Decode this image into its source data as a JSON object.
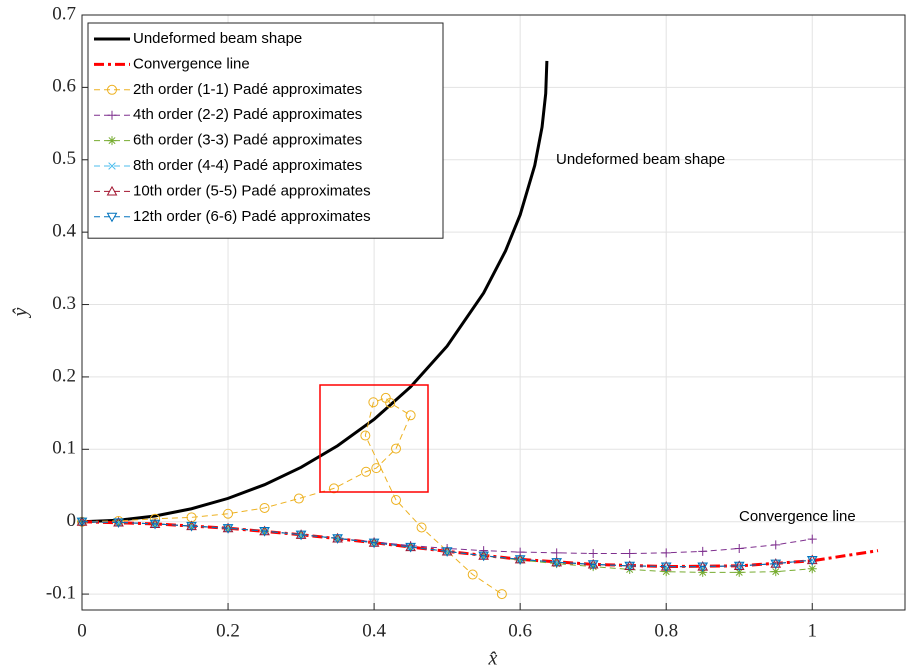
{
  "chart_data": {
    "type": "line",
    "xlabel": "x̂",
    "ylabel": "ŷ",
    "xlim": [
      0,
      1.127
    ],
    "ylim": [
      -0.122,
      0.7
    ],
    "xticks": [
      0,
      0.2,
      0.4,
      0.6,
      0.8,
      1
    ],
    "yticks": [
      -0.1,
      0,
      0.1,
      0.2,
      0.3,
      0.4,
      0.5,
      0.6,
      0.7
    ],
    "grid": true,
    "legend": "upper left",
    "annotations": [
      "Undeformed beam shape",
      "Convergence line"
    ],
    "series": [
      {
        "name": "Undeformed beam shape",
        "color": "#000000",
        "style": "solid",
        "marker": "none",
        "x": [
          0,
          0.05,
          0.1,
          0.15,
          0.2,
          0.25,
          0.3,
          0.35,
          0.4,
          0.45,
          0.5,
          0.55,
          0.58,
          0.6,
          0.62,
          0.63,
          0.635,
          0.6366
        ],
        "values": [
          0,
          0.002,
          0.0079,
          0.0179,
          0.0322,
          0.0511,
          0.0751,
          0.1049,
          0.1414,
          0.1863,
          0.2426,
          0.316,
          0.3742,
          0.4239,
          0.4922,
          0.5452,
          0.5915,
          0.6366
        ]
      },
      {
        "name": "Convergence line",
        "color": "#ff0000",
        "style": "dashdot",
        "marker": "none",
        "x": [
          0,
          0.1,
          0.2,
          0.3,
          0.4,
          0.5,
          0.6,
          0.7,
          0.8,
          0.9,
          1.0,
          1.09
        ],
        "values": [
          0,
          -0.003,
          -0.009,
          -0.018,
          -0.029,
          -0.041,
          -0.052,
          -0.059,
          -0.062,
          -0.061,
          -0.054,
          -0.04
        ]
      },
      {
        "name": "2th order (1-1) Padé approximates",
        "color": "#edb120",
        "style": "dashed",
        "marker": "circle",
        "x": [
          0,
          0.05,
          0.1,
          0.15,
          0.2,
          0.25,
          0.297,
          0.345,
          0.389,
          0.403,
          0.43,
          0.45,
          0.422,
          0.416,
          0.399,
          0.388,
          0.43,
          0.465,
          0.535,
          0.575
        ],
        "values": [
          0,
          0.001,
          0.004,
          0.006,
          0.011,
          0.019,
          0.032,
          0.046,
          0.069,
          0.074,
          0.101,
          0.147,
          0.164,
          0.171,
          0.165,
          0.119,
          0.03,
          -0.008,
          -0.073,
          -0.1
        ]
      },
      {
        "name": "4th order (2-2) Padé approximates",
        "color": "#7e2f8e",
        "style": "dashed",
        "marker": "plus",
        "x": [
          0,
          0.05,
          0.1,
          0.15,
          0.2,
          0.25,
          0.3,
          0.35,
          0.4,
          0.45,
          0.5,
          0.55,
          0.6,
          0.65,
          0.7,
          0.75,
          0.8,
          0.85,
          0.9,
          0.95,
          1
        ],
        "values": [
          0,
          -0.001,
          -0.003,
          -0.006,
          -0.009,
          -0.013,
          -0.018,
          -0.023,
          -0.028,
          -0.033,
          -0.037,
          -0.04,
          -0.042,
          -0.043,
          -0.044,
          -0.044,
          -0.043,
          -0.041,
          -0.037,
          -0.032,
          -0.024
        ]
      },
      {
        "name": "6th order (3-3) Padé approximates",
        "color": "#77ac30",
        "style": "dashed",
        "marker": "asterisk",
        "x": [
          0,
          0.05,
          0.1,
          0.15,
          0.2,
          0.25,
          0.3,
          0.35,
          0.4,
          0.45,
          0.5,
          0.55,
          0.6,
          0.65,
          0.7,
          0.75,
          0.8,
          0.85,
          0.9,
          0.95,
          1
        ],
        "values": [
          0,
          -0.001,
          -0.003,
          -0.006,
          -0.009,
          -0.013,
          -0.018,
          -0.023,
          -0.029,
          -0.035,
          -0.041,
          -0.047,
          -0.053,
          -0.058,
          -0.062,
          -0.066,
          -0.069,
          -0.07,
          -0.07,
          -0.069,
          -0.065
        ]
      },
      {
        "name": "8th order (4-4) Padé approximates",
        "color": "#4dbeee",
        "style": "dashed",
        "marker": "cross",
        "x": [
          0,
          0.05,
          0.1,
          0.15,
          0.2,
          0.25,
          0.3,
          0.35,
          0.4,
          0.45,
          0.5,
          0.55,
          0.6,
          0.65,
          0.7,
          0.75,
          0.8,
          0.85,
          0.9,
          0.95,
          1
        ],
        "values": [
          0,
          -0.001,
          -0.003,
          -0.006,
          -0.009,
          -0.013,
          -0.018,
          -0.023,
          -0.029,
          -0.035,
          -0.041,
          -0.047,
          -0.052,
          -0.056,
          -0.059,
          -0.061,
          -0.062,
          -0.062,
          -0.061,
          -0.058,
          -0.053
        ]
      },
      {
        "name": "10th order (5-5) Padé approximates",
        "color": "#a2142f",
        "style": "dashed",
        "marker": "triangle-up",
        "x": [
          0,
          0.05,
          0.1,
          0.15,
          0.2,
          0.25,
          0.3,
          0.35,
          0.4,
          0.45,
          0.5,
          0.55,
          0.6,
          0.65,
          0.7,
          0.75,
          0.8,
          0.85,
          0.9,
          0.95,
          1
        ],
        "values": [
          0,
          -0.001,
          -0.003,
          -0.006,
          -0.009,
          -0.013,
          -0.018,
          -0.023,
          -0.029,
          -0.035,
          -0.041,
          -0.047,
          -0.052,
          -0.056,
          -0.059,
          -0.061,
          -0.062,
          -0.062,
          -0.061,
          -0.058,
          -0.053
        ]
      },
      {
        "name": "12th order (6-6) Padé approximates",
        "color": "#0072bd",
        "style": "dashed",
        "marker": "triangle-down",
        "x": [
          0,
          0.05,
          0.1,
          0.15,
          0.2,
          0.25,
          0.3,
          0.35,
          0.4,
          0.45,
          0.5,
          0.55,
          0.6,
          0.65,
          0.7,
          0.75,
          0.8,
          0.85,
          0.9,
          0.95,
          1
        ],
        "values": [
          0,
          -0.001,
          -0.003,
          -0.006,
          -0.009,
          -0.013,
          -0.018,
          -0.023,
          -0.029,
          -0.035,
          -0.041,
          -0.047,
          -0.052,
          -0.056,
          -0.059,
          -0.061,
          -0.062,
          -0.062,
          -0.061,
          -0.058,
          -0.053
        ]
      }
    ]
  }
}
